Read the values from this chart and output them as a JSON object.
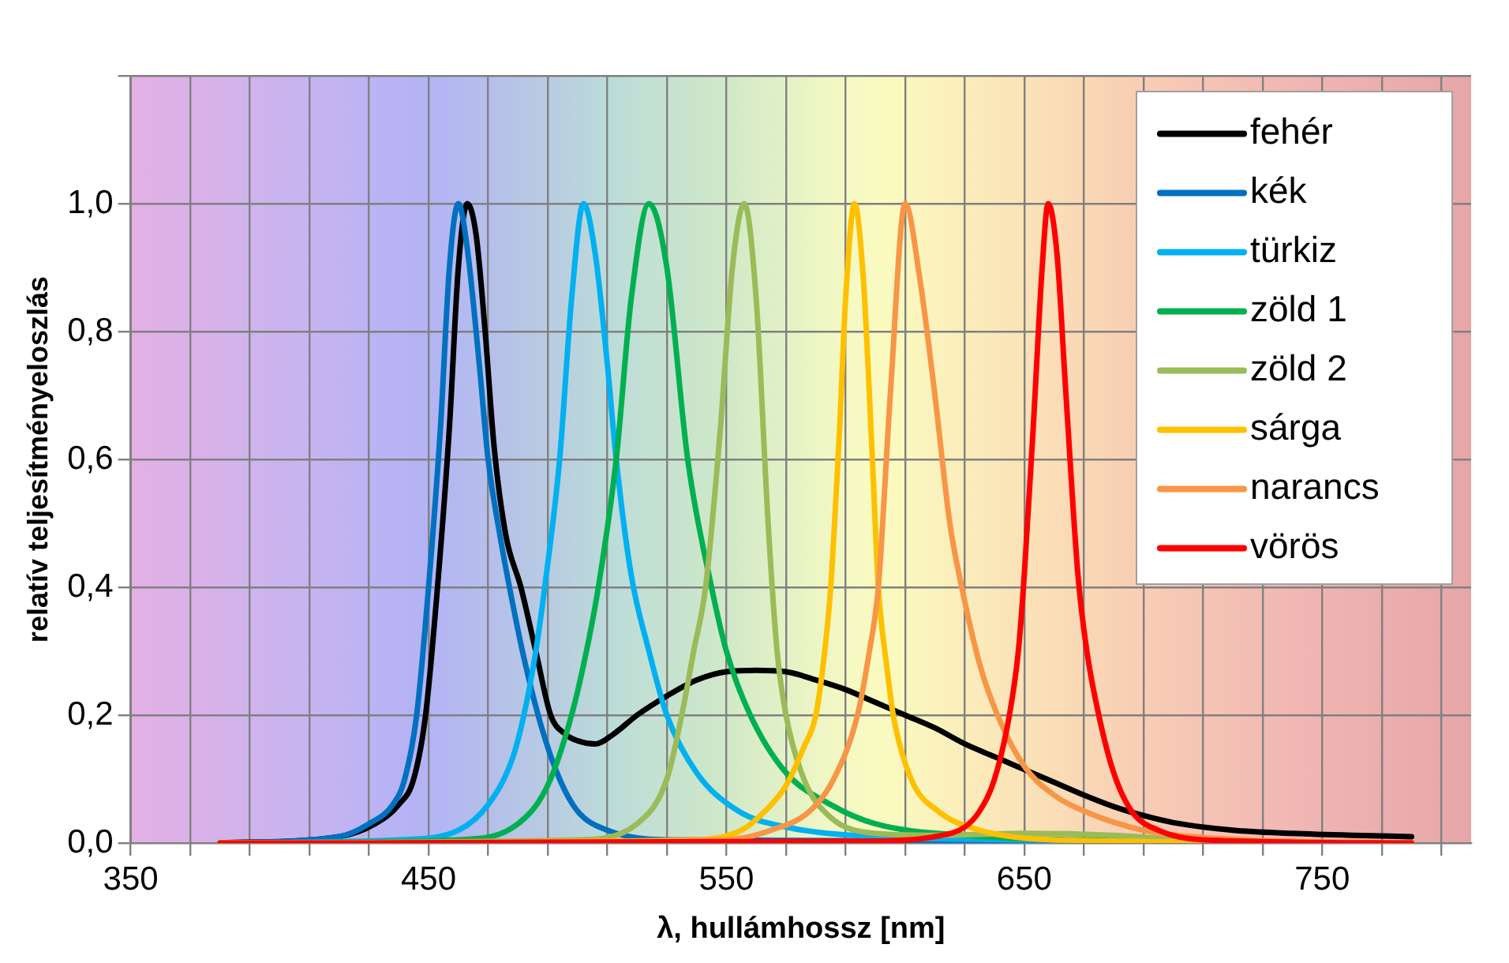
{
  "chart_data": {
    "type": "line",
    "xlabel": "λ, hullámhossz [nm]",
    "ylabel": "relatív teljesítményeloszlás",
    "xlim": [
      350,
      800
    ],
    "ylim": [
      0,
      1.2
    ],
    "xticks": [
      350,
      {
        "value": 370,
        "label": null
      },
      {
        "value": 390,
        "label": null
      },
      {
        "value": 410,
        "label": null
      },
      {
        "value": 430,
        "label": null
      },
      450,
      {
        "value": 470,
        "label": null
      },
      {
        "value": 490,
        "label": null
      },
      {
        "value": 510,
        "label": null
      },
      {
        "value": 530,
        "label": null
      },
      550,
      {
        "value": 570,
        "label": null
      },
      {
        "value": 590,
        "label": null
      },
      {
        "value": 610,
        "label": null
      },
      {
        "value": 630,
        "label": null
      },
      650,
      {
        "value": 670,
        "label": null
      },
      {
        "value": 690,
        "label": null
      },
      {
        "value": 710,
        "label": null
      },
      {
        "value": 730,
        "label": null
      },
      750,
      {
        "value": 770,
        "label": null
      },
      {
        "value": 790,
        "label": null
      }
    ],
    "yticks": [
      {
        "value": 0,
        "label": "0,0"
      },
      {
        "value": 0.2,
        "label": "0,2"
      },
      {
        "value": 0.4,
        "label": "0,4"
      },
      {
        "value": 0.6,
        "label": "0,6"
      },
      {
        "value": 0.8,
        "label": "0,8"
      },
      {
        "value": 1,
        "label": "1,0"
      },
      {
        "value": 1.2,
        "label": null
      }
    ],
    "grid": true,
    "legend": "top right",
    "marker": "none",
    "line_style": "solid",
    "series": [
      {
        "name": "fehér",
        "color": "#000000",
        "x": [
          380,
          420,
          432,
          440,
          445,
          449,
          453,
          457,
          460,
          463,
          466,
          469,
          472,
          476,
          481,
          486,
          491,
          496,
          500,
          506,
          512,
          520,
          530,
          540,
          550,
          560,
          570,
          580,
          590,
          600,
          610,
          620,
          630,
          640,
          650,
          660,
          670,
          680,
          690,
          700,
          720,
          740,
          760,
          780
        ],
        "values": [
          0,
          0.01,
          0.03,
          0.06,
          0.1,
          0.2,
          0.4,
          0.65,
          0.9,
          1.0,
          0.95,
          0.8,
          0.62,
          0.48,
          0.4,
          0.3,
          0.2,
          0.17,
          0.16,
          0.155,
          0.17,
          0.2,
          0.23,
          0.255,
          0.268,
          0.27,
          0.268,
          0.255,
          0.24,
          0.22,
          0.2,
          0.18,
          0.155,
          0.135,
          0.115,
          0.095,
          0.075,
          0.057,
          0.043,
          0.032,
          0.02,
          0.015,
          0.012,
          0.01
        ]
      },
      {
        "name": "kék",
        "color": "#0070c0",
        "x": [
          380,
          420,
          430,
          438,
          442,
          446,
          450,
          454,
          457,
          460,
          463,
          467,
          470,
          474,
          478,
          482,
          488,
          494,
          500,
          510,
          530,
          780
        ],
        "values": [
          0,
          0.01,
          0.03,
          0.06,
          0.1,
          0.2,
          0.4,
          0.65,
          0.9,
          1.0,
          0.93,
          0.75,
          0.6,
          0.48,
          0.38,
          0.29,
          0.18,
          0.1,
          0.05,
          0.02,
          0.005,
          0
        ]
      },
      {
        "name": "türkiz",
        "color": "#00b0f0",
        "x": [
          380,
          440,
          460,
          470,
          478,
          482,
          486,
          489,
          494,
          498,
          502,
          506,
          510,
          513,
          518,
          524,
          530,
          540,
          554,
          570,
          600,
          650,
          780
        ],
        "values": [
          0,
          0.005,
          0.02,
          0.06,
          0.13,
          0.2,
          0.3,
          0.4,
          0.6,
          0.85,
          1.0,
          0.92,
          0.75,
          0.6,
          0.42,
          0.3,
          0.2,
          0.11,
          0.05,
          0.025,
          0.01,
          0.005,
          0
        ]
      },
      {
        "name": "zöld 1",
        "color": "#00b050",
        "x": [
          380,
          460,
          480,
          490,
          498,
          503,
          507,
          513,
          518,
          524,
          530,
          537,
          545,
          550,
          558,
          570,
          585,
          600,
          630,
          680,
          780
        ],
        "values": [
          0,
          0.005,
          0.03,
          0.09,
          0.2,
          0.3,
          0.4,
          0.6,
          0.85,
          1.0,
          0.9,
          0.6,
          0.4,
          0.3,
          0.2,
          0.11,
          0.06,
          0.03,
          0.012,
          0.004,
          0
        ]
      },
      {
        "name": "zöld 2",
        "color": "#9bbb59",
        "x": [
          380,
          500,
          520,
          530,
          535,
          539,
          543,
          548,
          552,
          556,
          560,
          564,
          567,
          570,
          576,
          585,
          600,
          620,
          650,
          680,
          700,
          730,
          780
        ],
        "values": [
          0,
          0.005,
          0.03,
          0.1,
          0.2,
          0.3,
          0.4,
          0.65,
          0.9,
          1.0,
          0.85,
          0.5,
          0.3,
          0.2,
          0.1,
          0.04,
          0.015,
          0.012,
          0.015,
          0.012,
          0.006,
          0.002,
          0
        ]
      },
      {
        "name": "sárga",
        "color": "#ffc000",
        "x": [
          380,
          540,
          555,
          563,
          570,
          576,
          580,
          583,
          585,
          588,
          590,
          593,
          596,
          599,
          601,
          604,
          606,
          612,
          621,
          635,
          660,
          780
        ],
        "values": [
          0,
          0.005,
          0.02,
          0.05,
          0.09,
          0.15,
          0.2,
          0.3,
          0.4,
          0.65,
          0.85,
          1.0,
          0.88,
          0.6,
          0.4,
          0.27,
          0.2,
          0.1,
          0.05,
          0.02,
          0.005,
          0
        ]
      },
      {
        "name": "narancs",
        "color": "#f79646",
        "x": [
          380,
          550,
          565,
          578,
          586,
          594,
          598,
          601,
          605,
          610,
          615,
          620,
          625,
          629,
          635,
          641,
          650,
          660,
          670,
          690,
          720,
          780
        ],
        "values": [
          0,
          0.005,
          0.02,
          0.05,
          0.1,
          0.2,
          0.3,
          0.4,
          0.7,
          1.0,
          0.88,
          0.7,
          0.5,
          0.4,
          0.28,
          0.2,
          0.12,
          0.075,
          0.05,
          0.02,
          0.006,
          0
        ]
      },
      {
        "name": "vörös",
        "color": "#ff0000",
        "x": [
          380,
          600,
          620,
          630,
          635,
          640,
          645,
          648,
          650,
          653,
          656,
          658,
          661,
          664,
          668,
          671,
          675,
          680,
          686,
          695,
          710,
          780
        ],
        "values": [
          0,
          0.003,
          0.01,
          0.025,
          0.05,
          0.1,
          0.2,
          0.3,
          0.42,
          0.65,
          0.9,
          1.0,
          0.92,
          0.7,
          0.42,
          0.3,
          0.2,
          0.11,
          0.05,
          0.02,
          0.005,
          0
        ]
      }
    ]
  }
}
